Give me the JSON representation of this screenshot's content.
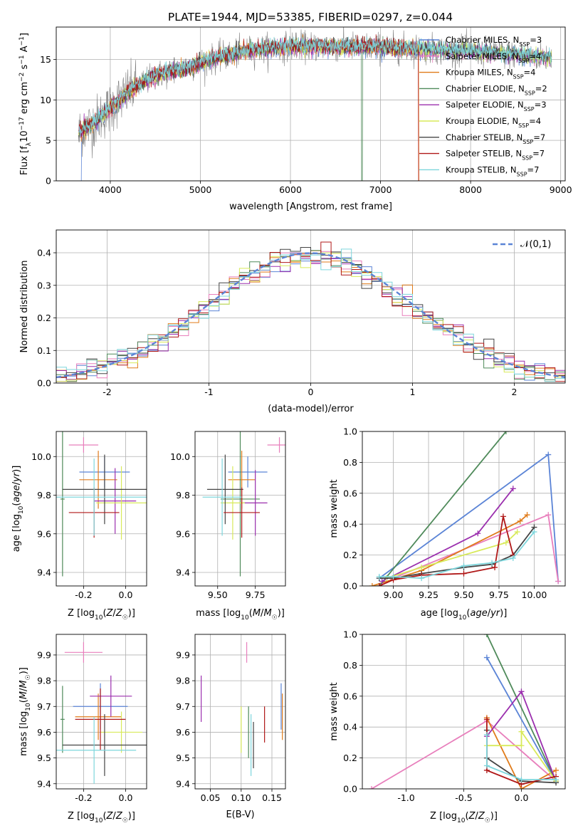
{
  "figure_title": "PLATE=1944, MJD=53385, FIBERID=0297, z=0.044",
  "models": [
    {
      "name": "Chabrier MILES",
      "nssp": "3",
      "color": "#5b84d6"
    },
    {
      "name": "Salpeter MILES",
      "nssp": "4",
      "color": "#e87fbc"
    },
    {
      "name": "Kroupa MILES",
      "nssp": "4",
      "color": "#e07b1a"
    },
    {
      "name": "Chabrier ELODIE",
      "nssp": "2",
      "color": "#4f8a5a"
    },
    {
      "name": "Salpeter ELODIE",
      "nssp": "3",
      "color": "#9b2fae"
    },
    {
      "name": "Kroupa ELODIE",
      "nssp": "4",
      "color": "#d8ea5a"
    },
    {
      "name": "Chabrier STELIB",
      "nssp": "7",
      "color": "#444444"
    },
    {
      "name": "Salpeter STELIB",
      "nssp": "7",
      "color": "#b01818"
    },
    {
      "name": "Kroupa STELIB",
      "nssp": "7",
      "color": "#7ed6dc"
    }
  ],
  "chart_data": [
    {
      "id": "spectrum",
      "type": "line",
      "xlabel": "wavelength [Angstrom, rest frame]",
      "ylabel": "Flux [f_λ 10^-17 erg cm^-2 s^-1 A^-1]",
      "xlim": [
        3400,
        9050
      ],
      "ylim": [
        0,
        19
      ],
      "xticks": [
        4000,
        5000,
        6000,
        7000,
        8000,
        9000
      ],
      "yticks": [
        0,
        5,
        10,
        15
      ],
      "legend_position": "upper right",
      "data_color": "#808080",
      "continuum": {
        "x": [
          3650,
          3800,
          4000,
          4200,
          4500,
          4800,
          5000,
          5300,
          5600,
          6000,
          6500,
          7000,
          7500,
          8000,
          8500,
          8900
        ],
        "y": [
          6.0,
          7.0,
          9.0,
          11.0,
          13.0,
          13.8,
          14.6,
          15.5,
          16.2,
          16.6,
          16.6,
          16.5,
          16.3,
          16.0,
          15.6,
          15.2
        ]
      }
    },
    {
      "id": "residuals",
      "type": "histogram",
      "xlabel": "(data-model)/error",
      "ylabel": "Normed distribution",
      "xlim": [
        -2.5,
        2.5
      ],
      "ylim": [
        0,
        0.47
      ],
      "xticks": [
        -2,
        -1,
        0,
        1,
        2
      ],
      "yticks": [
        0.0,
        0.1,
        0.2,
        0.3,
        0.4
      ],
      "bin_width": 0.1,
      "reference_curve": {
        "label": "𝒩(0,1)",
        "mean": 0,
        "sigma": 1,
        "color": "#5b84d6"
      },
      "legend_position": "upper right"
    },
    {
      "id": "age_vs_Z",
      "type": "errorbar",
      "xlabel": "Z [log10(Z/Z☉)]",
      "ylabel": "age [log10(age/yr)]",
      "xlim": [
        -0.33,
        0.1
      ],
      "ylim": [
        9.33,
        10.13
      ],
      "xticks": [
        -0.2,
        0.0
      ],
      "yticks": [
        9.4,
        9.6,
        9.8,
        10.0
      ],
      "points": [
        {
          "x": -0.1,
          "xerr": 0.12,
          "y": 9.92,
          "yerr": 0.08
        },
        {
          "x": -0.2,
          "xerr": 0.07,
          "y": 10.06,
          "yerr": 0.04
        },
        {
          "x": -0.13,
          "xerr": 0.09,
          "y": 9.88,
          "yerr": 0.15
        },
        {
          "x": -0.3,
          "xerr": 0.01,
          "y": 9.78,
          "yerr": 0.4
        },
        {
          "x": -0.05,
          "xerr": 0.1,
          "y": 9.77,
          "yerr": 0.17
        },
        {
          "x": -0.02,
          "xerr": 0.12,
          "y": 9.76,
          "yerr": 0.19
        },
        {
          "x": -0.1,
          "xerr": 0.2,
          "y": 9.83,
          "yerr": 0.18
        },
        {
          "x": -0.15,
          "xerr": 0.12,
          "y": 9.71,
          "yerr": 0.13
        },
        {
          "x": -0.15,
          "xerr": 0.25,
          "y": 9.79,
          "yerr": 0.2
        }
      ]
    },
    {
      "id": "age_vs_mass",
      "type": "errorbar",
      "xlabel": "mass [log10(M/M☉)]",
      "ylabel": "",
      "xlim": [
        9.35,
        9.95
      ],
      "ylim": [
        9.33,
        10.13
      ],
      "xticks": [
        9.5,
        9.75
      ],
      "yticks": [
        9.4,
        9.6,
        9.8,
        10.0
      ],
      "points": [
        {
          "x": 9.7,
          "xerr": 0.13,
          "y": 9.92,
          "yerr": 0.08
        },
        {
          "x": 9.91,
          "xerr": 0.08,
          "y": 10.06,
          "yerr": 0.04
        },
        {
          "x": 9.66,
          "xerr": 0.09,
          "y": 9.88,
          "yerr": 0.15
        },
        {
          "x": 9.65,
          "xerr": 0.13,
          "y": 9.78,
          "yerr": 0.4
        },
        {
          "x": 9.75,
          "xerr": 0.08,
          "y": 9.76,
          "yerr": 0.17
        },
        {
          "x": 9.6,
          "xerr": 0.08,
          "y": 9.76,
          "yerr": 0.19
        },
        {
          "x": 9.55,
          "xerr": 0.12,
          "y": 9.83,
          "yerr": 0.18
        },
        {
          "x": 9.66,
          "xerr": 0.12,
          "y": 9.71,
          "yerr": 0.13
        },
        {
          "x": 9.53,
          "xerr": 0.13,
          "y": 9.79,
          "yerr": 0.2
        }
      ]
    },
    {
      "id": "weight_vs_age",
      "type": "line",
      "xlabel": "age [log10(age/yr)]",
      "ylabel": "mass weight",
      "xlim": [
        8.78,
        10.22
      ],
      "ylim": [
        0,
        1
      ],
      "xticks": [
        9.0,
        9.25,
        9.5,
        9.75,
        10.0
      ],
      "yticks": [
        0.0,
        0.2,
        0.4,
        0.6,
        0.8,
        1.0
      ],
      "series": [
        {
          "x": [
            8.9,
            10.1,
            10.17
          ],
          "y": [
            0.05,
            0.85,
            0.03
          ]
        },
        {
          "x": [
            9.0,
            10.1,
            10.17
          ],
          "y": [
            0.05,
            0.46,
            0.03
          ]
        },
        {
          "x": [
            8.85,
            9.2,
            9.9,
            9.95
          ],
          "y": [
            0.0,
            0.1,
            0.42,
            0.46
          ]
        },
        {
          "x": [
            8.9,
            9.8
          ],
          "y": [
            0.0,
            1.0
          ]
        },
        {
          "x": [
            8.92,
            9.6,
            9.85
          ],
          "y": [
            0.03,
            0.34,
            0.63
          ]
        },
        {
          "x": [
            8.95,
            9.2,
            9.8,
            9.88
          ],
          "y": [
            0.05,
            0.12,
            0.28,
            0.35
          ]
        },
        {
          "x": [
            8.9,
            9.0,
            9.2,
            9.5,
            9.7,
            9.85,
            10.0
          ],
          "y": [
            0.05,
            0.05,
            0.08,
            0.12,
            0.14,
            0.2,
            0.38
          ]
        },
        {
          "x": [
            8.9,
            9.0,
            9.2,
            9.5,
            9.72,
            9.78,
            9.85
          ],
          "y": [
            0.0,
            0.04,
            0.07,
            0.08,
            0.12,
            0.45,
            0.2
          ]
        },
        {
          "x": [
            8.9,
            9.0,
            9.2,
            9.5,
            9.7,
            9.85,
            10.0
          ],
          "y": [
            0.06,
            0.06,
            0.05,
            0.13,
            0.15,
            0.18,
            0.35
          ]
        }
      ]
    },
    {
      "id": "mass_vs_Z",
      "type": "errorbar",
      "xlabel": "Z [log10(Z/Z☉)]",
      "ylabel": "mass [log10(M/M☉)]",
      "xlim": [
        -0.33,
        0.1
      ],
      "ylim": [
        9.38,
        9.98
      ],
      "xticks": [
        -0.2,
        0.0
      ],
      "yticks": [
        9.4,
        9.5,
        9.6,
        9.7,
        9.8,
        9.9
      ],
      "points": [
        {
          "x": -0.12,
          "xerr": 0.13,
          "y": 9.7,
          "yerr": 0.09
        },
        {
          "x": -0.2,
          "xerr": 0.09,
          "y": 9.91,
          "yerr": 0.04
        },
        {
          "x": -0.13,
          "xerr": 0.11,
          "y": 9.66,
          "yerr": 0.09
        },
        {
          "x": -0.3,
          "xerr": 0.01,
          "y": 9.65,
          "yerr": 0.13
        },
        {
          "x": -0.07,
          "xerr": 0.1,
          "y": 9.74,
          "yerr": 0.08
        },
        {
          "x": -0.02,
          "xerr": 0.1,
          "y": 9.6,
          "yerr": 0.08
        },
        {
          "x": -0.1,
          "xerr": 0.2,
          "y": 9.55,
          "yerr": 0.12
        },
        {
          "x": -0.12,
          "xerr": 0.12,
          "y": 9.65,
          "yerr": 0.12
        },
        {
          "x": -0.15,
          "xerr": 0.2,
          "y": 9.53,
          "yerr": 0.13
        }
      ]
    },
    {
      "id": "mass_vs_ebv",
      "type": "errorbar",
      "xlabel": "E(B-V)",
      "ylabel": "",
      "xlim": [
        0.025,
        0.172
      ],
      "ylim": [
        9.38,
        9.98
      ],
      "xticks": [
        0.05,
        0.1,
        0.15
      ],
      "yticks": [
        9.4,
        9.5,
        9.6,
        9.7,
        9.8,
        9.9
      ],
      "points": [
        {
          "x": 0.165,
          "y": 9.7,
          "yerr": 0.09
        },
        {
          "x": 0.109,
          "y": 9.91,
          "yerr": 0.04
        },
        {
          "x": 0.167,
          "y": 9.66,
          "yerr": 0.09
        },
        {
          "x": 0.112,
          "y": 9.6,
          "yerr": 0.1
        },
        {
          "x": 0.035,
          "y": 9.73,
          "yerr": 0.09
        },
        {
          "x": 0.1,
          "y": 9.61,
          "yerr": 0.09
        },
        {
          "x": 0.12,
          "y": 9.55,
          "yerr": 0.09
        },
        {
          "x": 0.138,
          "y": 9.63,
          "yerr": 0.07
        },
        {
          "x": 0.116,
          "y": 9.55,
          "yerr": 0.12
        }
      ]
    },
    {
      "id": "weight_vs_Z",
      "type": "line",
      "xlabel": "Z [log10(Z/Z☉)]",
      "ylabel": "mass weight",
      "xlim": [
        -1.38,
        0.38
      ],
      "ylim": [
        0,
        1
      ],
      "xticks": [
        -1.0,
        -0.5,
        0.0
      ],
      "yticks": [
        0.0,
        0.2,
        0.4,
        0.6,
        0.8,
        1.0
      ],
      "series": [
        {
          "x": [
            -0.3,
            0.3
          ],
          "y": [
            0.85,
            0.05
          ]
        },
        {
          "x": [
            -1.3,
            -0.3,
            0.3
          ],
          "y": [
            0.0,
            0.44,
            0.05
          ]
        },
        {
          "x": [
            -0.3,
            0.0,
            0.3
          ],
          "y": [
            0.46,
            0.0,
            0.12
          ]
        },
        {
          "x": [
            -0.3,
            0.3
          ],
          "y": [
            1.0,
            0.05
          ]
        },
        {
          "x": [
            -0.3,
            0.0,
            0.3
          ],
          "y": [
            0.34,
            0.63,
            0.05
          ]
        },
        {
          "x": [
            -0.3,
            0.0,
            0.0,
            0.3
          ],
          "y": [
            0.28,
            0.28,
            0.37,
            0.05
          ]
        },
        {
          "x": [
            -0.3,
            -0.3,
            0.0,
            0.3
          ],
          "y": [
            0.38,
            0.2,
            0.05,
            0.04
          ]
        },
        {
          "x": [
            -0.3,
            -0.3,
            0.0,
            0.3
          ],
          "y": [
            0.45,
            0.12,
            0.03,
            0.08
          ]
        },
        {
          "x": [
            -0.3,
            -0.3,
            0.0,
            0.3
          ],
          "y": [
            0.35,
            0.15,
            0.06,
            0.06
          ]
        }
      ]
    }
  ]
}
